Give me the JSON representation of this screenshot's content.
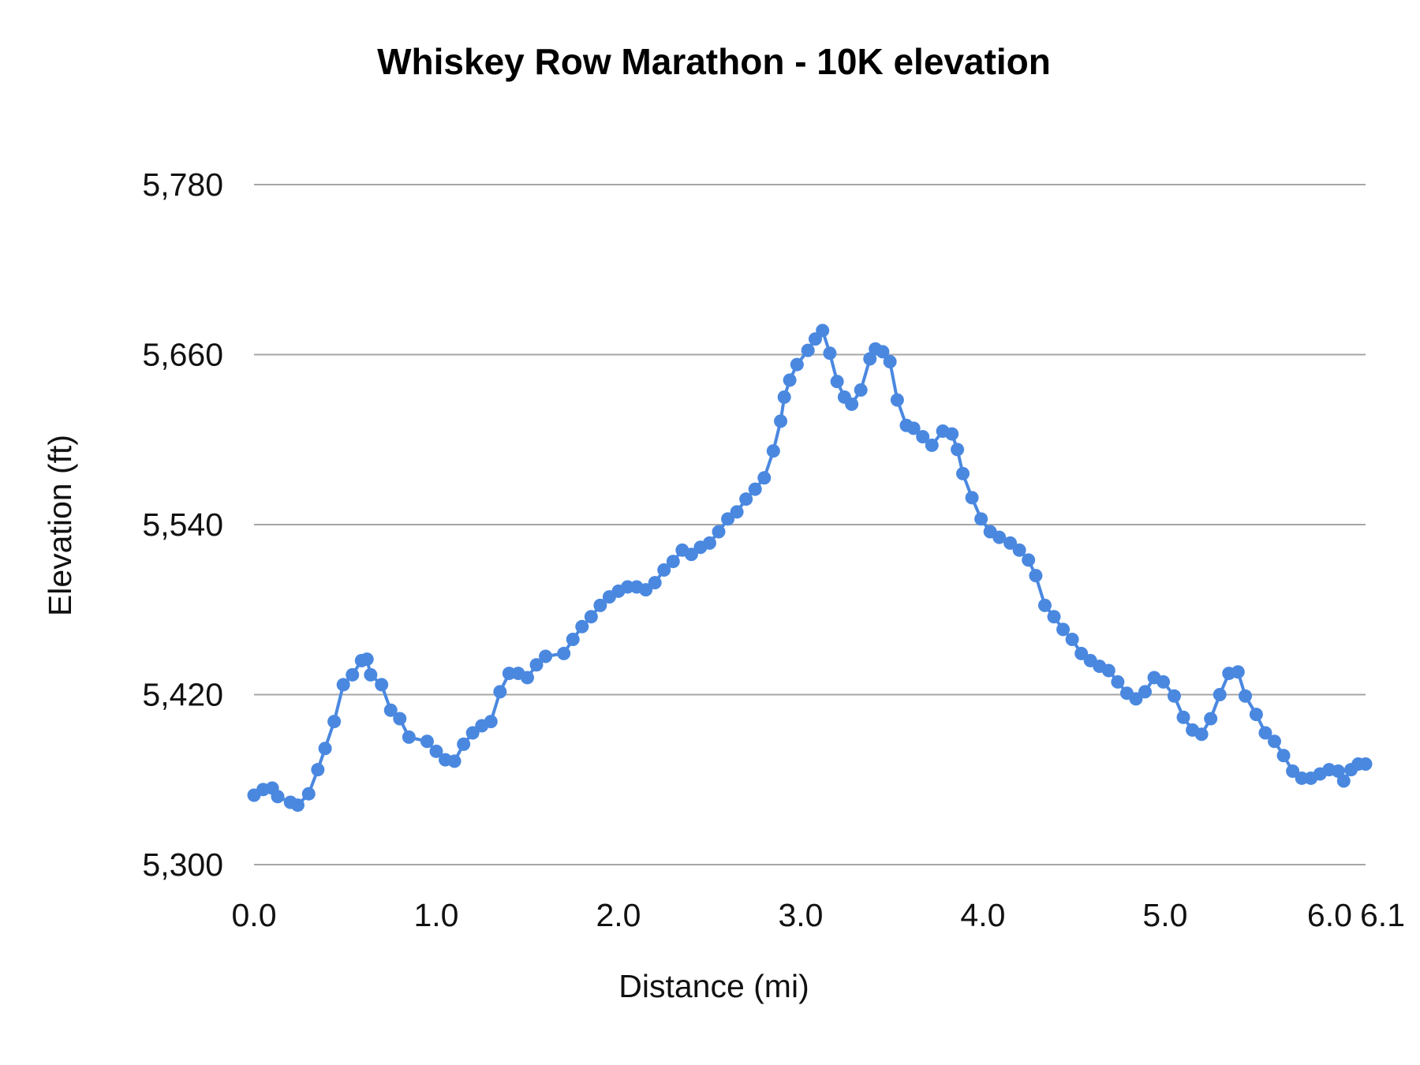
{
  "chart_data": {
    "type": "line",
    "title": "Whiskey Row Marathon - 10K elevation",
    "xlabel": "Distance (mi)",
    "ylabel": "Elevation (ft)",
    "xlim": [
      0,
      6.1
    ],
    "ylim": [
      5300,
      5780
    ],
    "x_ticks": [
      "0.0",
      "1.0",
      "2.0",
      "3.0",
      "4.0",
      "5.0",
      "6.0",
      "6.1"
    ],
    "x_tick_values": [
      0,
      1,
      2,
      3,
      4,
      5,
      6,
      6.1
    ],
    "y_ticks": [
      "5,300",
      "5,420",
      "5,540",
      "5,660",
      "5,780"
    ],
    "y_tick_values": [
      5300,
      5420,
      5540,
      5660,
      5780
    ],
    "grid": "horizontal",
    "legend": "none",
    "color": "#4a88e0",
    "markers": true,
    "series": [
      {
        "x": [
          0.0,
          0.05,
          0.1,
          0.13,
          0.2,
          0.24,
          0.3,
          0.35,
          0.39,
          0.44,
          0.49,
          0.54,
          0.59,
          0.62,
          0.64,
          0.7,
          0.75,
          0.8,
          0.85,
          0.95,
          1.0,
          1.05,
          1.1,
          1.15,
          1.2,
          1.25,
          1.3,
          1.35,
          1.4,
          1.45,
          1.5,
          1.55,
          1.6,
          1.7,
          1.75,
          1.8,
          1.85,
          1.9,
          1.95,
          2.0,
          2.05,
          2.1,
          2.15,
          2.2,
          2.25,
          2.3,
          2.35,
          2.4,
          2.45,
          2.5,
          2.55,
          2.6,
          2.65,
          2.7,
          2.75,
          2.8,
          2.85,
          2.89,
          2.91,
          2.94,
          2.98,
          3.04,
          3.08,
          3.12,
          3.16,
          3.2,
          3.24,
          3.28,
          3.33,
          3.38,
          3.41,
          3.45,
          3.49,
          3.53,
          3.58,
          3.62,
          3.67,
          3.72,
          3.78,
          3.83,
          3.86,
          3.89,
          3.94,
          3.99,
          4.04,
          4.09,
          4.15,
          4.2,
          4.25,
          4.29,
          4.34,
          4.39,
          4.44,
          4.49,
          4.54,
          4.59,
          4.64,
          4.69,
          4.74,
          4.79,
          4.84,
          4.89,
          4.94,
          4.99,
          5.05,
          5.1,
          5.15,
          5.2,
          5.25,
          5.3,
          5.35,
          5.4,
          5.44,
          5.5,
          5.55,
          5.6,
          5.65,
          5.7,
          5.75,
          5.8,
          5.85,
          5.9,
          5.95,
          5.98,
          6.02,
          6.06,
          6.1
        ],
        "y": [
          5349,
          5353,
          5354,
          5348,
          5344,
          5342,
          5350,
          5367,
          5382,
          5401,
          5427,
          5434,
          5444,
          5445,
          5434,
          5427,
          5409,
          5403,
          5390,
          5387,
          5380,
          5374,
          5373,
          5385,
          5393,
          5398,
          5401,
          5422,
          5435,
          5435,
          5432,
          5441,
          5447,
          5449,
          5459,
          5468,
          5475,
          5483,
          5489,
          5493,
          5496,
          5496,
          5494,
          5499,
          5508,
          5514,
          5522,
          5519,
          5524,
          5527,
          5535,
          5544,
          5549,
          5558,
          5565,
          5573,
          5592,
          5613,
          5630,
          5642,
          5653,
          5663,
          5671,
          5677,
          5661,
          5641,
          5630,
          5625,
          5635,
          5657,
          5664,
          5662,
          5655,
          5628,
          5610,
          5608,
          5602,
          5596,
          5606,
          5604,
          5593,
          5576,
          5559,
          5544,
          5535,
          5531,
          5527,
          5522,
          5515,
          5504,
          5483,
          5475,
          5466,
          5459,
          5449,
          5444,
          5440,
          5437,
          5429,
          5421,
          5417,
          5422,
          5432,
          5429,
          5419,
          5404,
          5395,
          5392,
          5403,
          5420,
          5435,
          5436,
          5419,
          5406,
          5393,
          5387,
          5377,
          5366,
          5361,
          5361,
          5364,
          5367,
          5366,
          5359,
          5367,
          5371,
          5371
        ]
      }
    ]
  }
}
